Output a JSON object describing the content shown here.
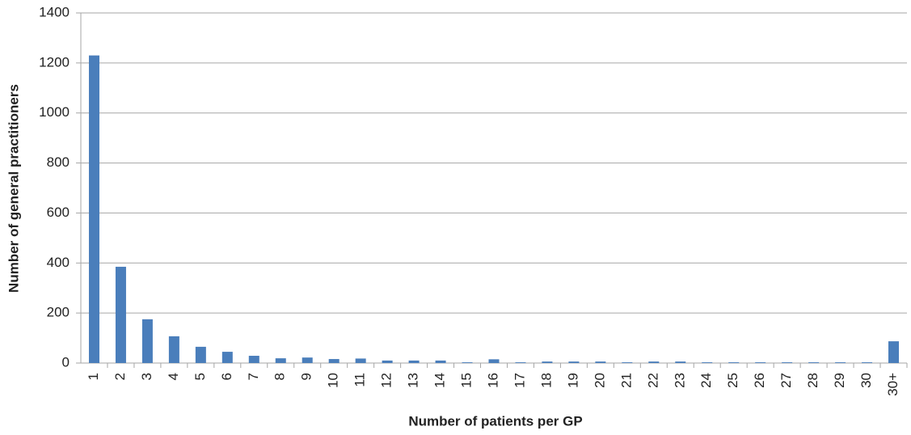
{
  "chart_data": {
    "type": "bar",
    "xlabel": "Number of patients per GP",
    "ylabel": "Number of general practitioners",
    "categories": [
      "1",
      "2",
      "3",
      "4",
      "5",
      "6",
      "7",
      "8",
      "9",
      "10",
      "11",
      "12",
      "13",
      "14",
      "15",
      "16",
      "17",
      "18",
      "19",
      "20",
      "21",
      "22",
      "23",
      "24",
      "25",
      "26",
      "27",
      "28",
      "29",
      "30",
      "30+"
    ],
    "values": [
      1230,
      385,
      175,
      107,
      65,
      45,
      29,
      19,
      22,
      16,
      18,
      10,
      10,
      10,
      3,
      15,
      3,
      6,
      6,
      6,
      3,
      6,
      6,
      3,
      3,
      3,
      3,
      3,
      3,
      3,
      87
    ],
    "color": "#4a7ebb",
    "ylim": [
      0,
      1400
    ],
    "yticks": [
      0,
      200,
      400,
      600,
      800,
      1000,
      1200,
      1400
    ],
    "grid": true
  }
}
